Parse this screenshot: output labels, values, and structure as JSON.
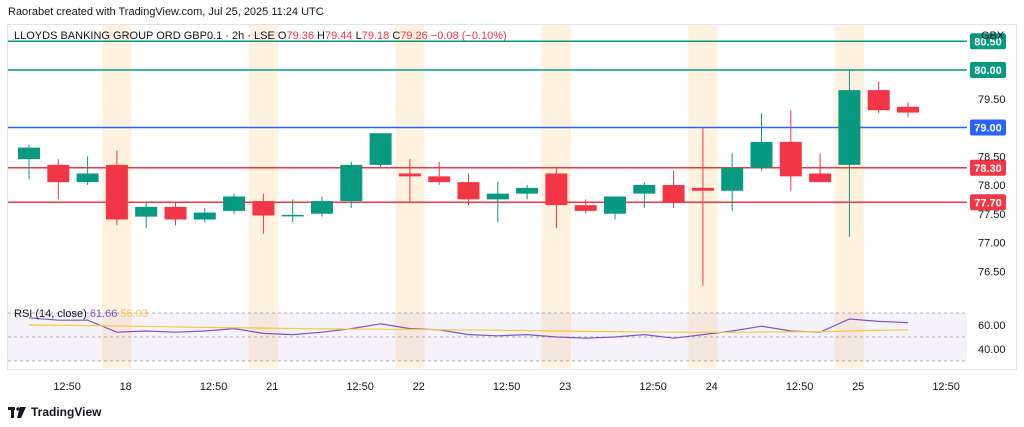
{
  "credit": "Raorabet created with TradingView.com, Jul 25, 2025 11:24 UTC",
  "legend": {
    "title": "LLOYDS BANKING GROUP ORD GBP0.1 · 2h · LSE",
    "o_label": "O",
    "o_value": "79.36",
    "h_label": "H",
    "h_value": "79.44",
    "l_label": "L",
    "l_value": "79.18",
    "c_label": "C",
    "c_value": "79.26",
    "change": "−0.08 (−0.10%)"
  },
  "currency": "GBX",
  "rsi_legend": {
    "name": "RSI (14, close)",
    "value": "61.66",
    "ma_value": "56.03"
  },
  "branding": "TradingView",
  "colors": {
    "up": "#089981",
    "down": "#f23645",
    "resistance": "#089981",
    "support": "#f23645",
    "pivot": "#2962ff",
    "rsi": "#7e57c2",
    "rsi_ma": "#f7c948",
    "session": "#fff3e0"
  },
  "chart_data": [
    {
      "type": "candlestick",
      "ylim": [
        76.0,
        80.8
      ],
      "yticks": [
        "76.50",
        "77.00",
        "77.50",
        "78.00",
        "78.50",
        "79.50"
      ],
      "xtick_labels": [
        "12:50",
        "18",
        "12:50",
        "21",
        "12:50",
        "22",
        "12:50",
        "23",
        "12:50",
        "24",
        "12:50",
        "25",
        "12:50"
      ],
      "xtick_index": [
        1.3,
        3.3,
        6.3,
        8.3,
        11.3,
        13.3,
        16.3,
        18.3,
        21.3,
        23.3,
        26.3,
        28.3,
        31.3
      ],
      "session_start_index": [
        3,
        8,
        13,
        18,
        23,
        28
      ],
      "horizontal_levels": [
        {
          "value": 80.5,
          "label": "80.50",
          "role": "resistance"
        },
        {
          "value": 80.0,
          "label": "80.00",
          "role": "resistance"
        },
        {
          "value": 79.0,
          "label": "79.00",
          "role": "pivot"
        },
        {
          "value": 78.3,
          "label": "78.30",
          "role": "support"
        },
        {
          "value": 77.7,
          "label": "77.70",
          "role": "support"
        }
      ],
      "candles": [
        {
          "o": 78.45,
          "h": 78.7,
          "l": 78.1,
          "c": 78.65
        },
        {
          "o": 78.35,
          "h": 78.45,
          "l": 77.75,
          "c": 78.05
        },
        {
          "o": 78.05,
          "h": 78.5,
          "l": 78.0,
          "c": 78.2
        },
        {
          "o": 78.35,
          "h": 78.6,
          "l": 77.3,
          "c": 77.4
        },
        {
          "o": 77.45,
          "h": 77.7,
          "l": 77.25,
          "c": 77.62
        },
        {
          "o": 77.62,
          "h": 77.7,
          "l": 77.3,
          "c": 77.4
        },
        {
          "o": 77.4,
          "h": 77.6,
          "l": 77.35,
          "c": 77.52
        },
        {
          "o": 77.55,
          "h": 77.85,
          "l": 77.5,
          "c": 77.8
        },
        {
          "o": 77.72,
          "h": 77.85,
          "l": 77.15,
          "c": 77.47
        },
        {
          "o": 77.47,
          "h": 77.75,
          "l": 77.35,
          "c": 77.48
        },
        {
          "o": 77.5,
          "h": 77.8,
          "l": 77.45,
          "c": 77.72
        },
        {
          "o": 77.72,
          "h": 78.4,
          "l": 77.6,
          "c": 78.35
        },
        {
          "o": 78.35,
          "h": 78.9,
          "l": 78.3,
          "c": 78.9
        },
        {
          "o": 78.2,
          "h": 78.45,
          "l": 77.7,
          "c": 78.15
        },
        {
          "o": 78.15,
          "h": 78.4,
          "l": 78.0,
          "c": 78.05
        },
        {
          "o": 78.05,
          "h": 78.2,
          "l": 77.65,
          "c": 77.75
        },
        {
          "o": 77.75,
          "h": 78.05,
          "l": 77.35,
          "c": 77.85
        },
        {
          "o": 77.85,
          "h": 78.0,
          "l": 77.75,
          "c": 77.95
        },
        {
          "o": 78.2,
          "h": 78.3,
          "l": 77.25,
          "c": 77.65
        },
        {
          "o": 77.65,
          "h": 77.75,
          "l": 77.5,
          "c": 77.55
        },
        {
          "o": 77.5,
          "h": 77.8,
          "l": 77.4,
          "c": 77.8
        },
        {
          "o": 77.85,
          "h": 78.05,
          "l": 77.6,
          "c": 78.0
        },
        {
          "o": 78.0,
          "h": 78.25,
          "l": 77.6,
          "c": 77.7
        },
        {
          "o": 77.95,
          "h": 79.0,
          "l": 76.25,
          "c": 77.9
        },
        {
          "o": 77.9,
          "h": 78.55,
          "l": 77.55,
          "c": 78.3
        },
        {
          "o": 78.3,
          "h": 79.25,
          "l": 78.25,
          "c": 78.75
        },
        {
          "o": 78.75,
          "h": 79.3,
          "l": 77.9,
          "c": 78.15
        },
        {
          "o": 78.2,
          "h": 78.55,
          "l": 78.05,
          "c": 78.05
        },
        {
          "o": 78.35,
          "h": 80.0,
          "l": 77.1,
          "c": 79.65
        },
        {
          "o": 79.65,
          "h": 79.8,
          "l": 79.25,
          "c": 79.3
        },
        {
          "o": 79.36,
          "h": 79.44,
          "l": 79.18,
          "c": 79.26
        }
      ]
    },
    {
      "type": "line",
      "name": "RSI (14, close)",
      "ylim": [
        25,
        75
      ],
      "yticks": [
        "60.00",
        "40.00"
      ],
      "bands": [
        30,
        50,
        70
      ],
      "series": [
        {
          "name": "RSI",
          "values": [
            66,
            64,
            64,
            54,
            55,
            54,
            55,
            57,
            53,
            52,
            54,
            57,
            61,
            57,
            56,
            52,
            51,
            52,
            50,
            49,
            50,
            52,
            49,
            52,
            55,
            59,
            55,
            54,
            65,
            63,
            62
          ]
        },
        {
          "name": "MA",
          "values": [
            60,
            59.8,
            59.5,
            59.2,
            58.8,
            58.4,
            58.0,
            57.7,
            57.4,
            57.1,
            56.8,
            56.6,
            56.5,
            56.3,
            56.1,
            55.9,
            55.6,
            55.3,
            55.0,
            54.7,
            54.4,
            54.2,
            54.0,
            53.9,
            53.9,
            54.1,
            54.3,
            54.5,
            55.0,
            55.5,
            56.0
          ]
        }
      ]
    }
  ]
}
